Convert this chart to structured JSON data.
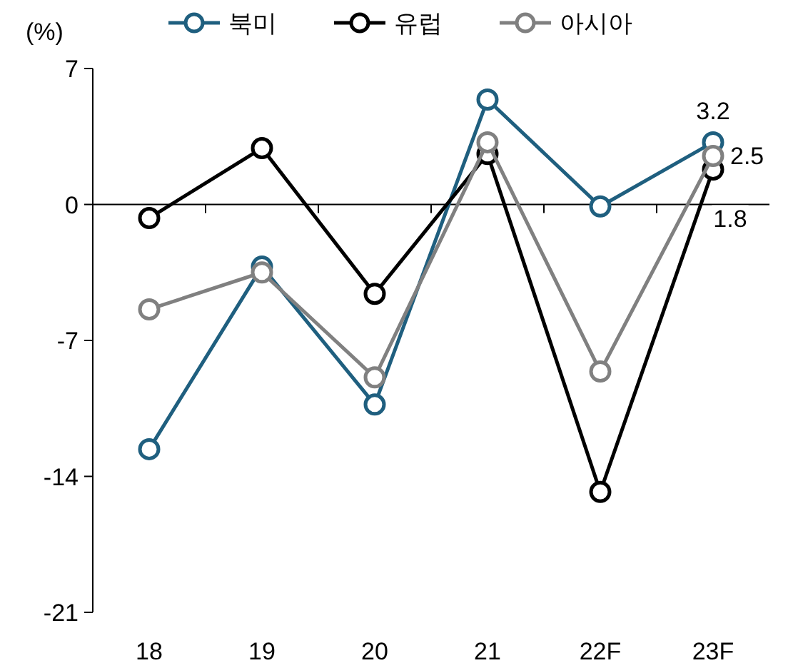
{
  "chart_data": {
    "type": "line",
    "ylabel": "(%)",
    "categories": [
      "18",
      "19",
      "20",
      "21",
      "22F",
      "23F"
    ],
    "ylim": [
      -21,
      7
    ],
    "yticks": [
      -21,
      -14,
      -7,
      0,
      7
    ],
    "legend": "top",
    "marker": "circle",
    "series": [
      {
        "name": "북미",
        "color": "#1f5f7f",
        "values": [
          -12.6,
          -3.2,
          -10.3,
          5.4,
          -0.1,
          3.2
        ],
        "value_labels": [
          null,
          null,
          null,
          null,
          null,
          "3.2"
        ]
      },
      {
        "name": "유럽",
        "color": "#000000",
        "values": [
          -0.7,
          2.9,
          -4.6,
          2.6,
          -14.8,
          1.8
        ],
        "value_labels": [
          null,
          null,
          null,
          null,
          null,
          "1.8"
        ]
      },
      {
        "name": "아시아",
        "color": "#808080",
        "values": [
          -5.4,
          -3.5,
          -8.9,
          3.2,
          -8.6,
          2.5
        ],
        "value_labels": [
          null,
          null,
          null,
          null,
          null,
          "2.5"
        ]
      }
    ]
  }
}
